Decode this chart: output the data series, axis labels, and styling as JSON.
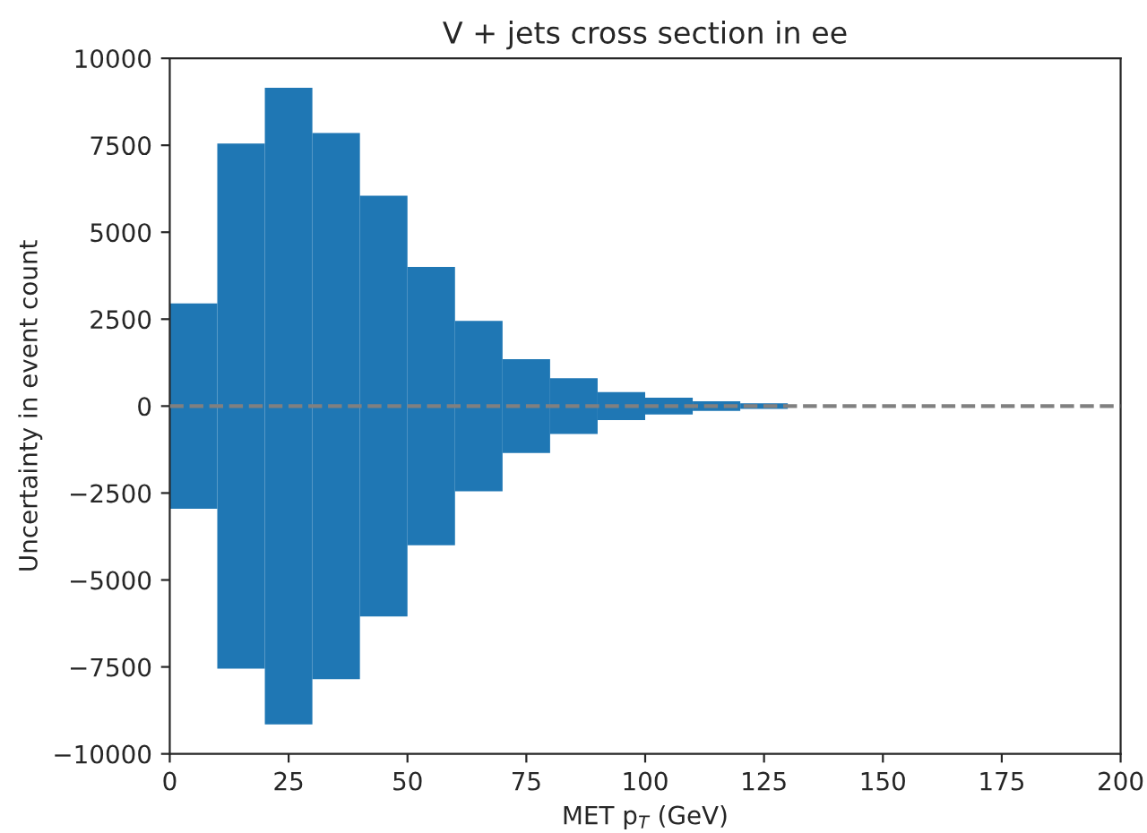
{
  "chart_data": {
    "type": "histogram",
    "title": "V + jets cross section in ee",
    "xlabel": "MET p$_{T}$ (GeV)",
    "ylabel": "Uncertainty in event count",
    "bins": [
      0,
      10,
      20,
      30,
      40,
      50,
      60,
      70,
      80,
      90,
      100,
      110,
      120,
      130
    ],
    "base": [
      -2950,
      -7550,
      -9150,
      -7850,
      -6050,
      -4000,
      -2450,
      -1350,
      -800,
      -400,
      -240,
      -140,
      -80
    ],
    "values": [
      5900,
      15100,
      18300,
      15700,
      12100,
      8000,
      4900,
      2700,
      1600,
      800,
      480,
      280,
      160
    ],
    "color": "#1f77b4",
    "xlim": [
      0,
      200
    ],
    "xticks": [
      0,
      25,
      50,
      75,
      100,
      125,
      150,
      175,
      200
    ],
    "ylim": [
      -10000,
      10000
    ],
    "yticks": [
      {
        "value": -10000,
        "label": "−10000"
      },
      {
        "value": -7500,
        "label": "−7500"
      },
      {
        "value": -5000,
        "label": "−5000"
      },
      {
        "value": -2500,
        "label": "−2500"
      },
      0,
      2500,
      5000,
      7500,
      10000
    ],
    "ref_lines": [
      {
        "axis": "y",
        "value": 0,
        "color": "#808080",
        "line_style": "dashed"
      }
    ],
    "grid": false,
    "legend": false
  }
}
